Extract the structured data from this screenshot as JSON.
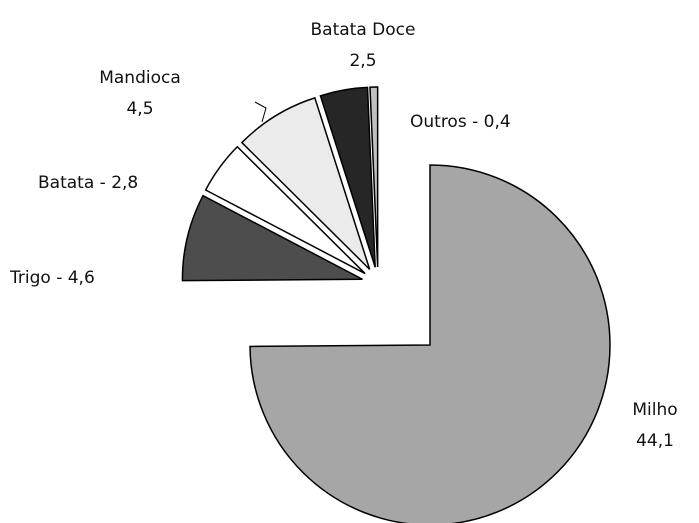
{
  "chart_data": {
    "type": "pie",
    "categories": [
      "Milho",
      "Trigo",
      "Batata",
      "Mandioca",
      "Batata Doce",
      "Outros"
    ],
    "values": [
      44.1,
      4.6,
      2.8,
      4.5,
      2.5,
      0.4
    ],
    "labels": [
      [
        "Milho",
        "44,1"
      ],
      [
        "Trigo - 4,6"
      ],
      [
        "Batata - 2,8"
      ],
      [
        "Mandioca",
        "4,5"
      ],
      [
        "Batata Doce",
        "2,5"
      ],
      [
        "Outros - 0,4"
      ]
    ],
    "colors": [
      "#a6a6a6",
      "#4d4d4d",
      "#ffffff",
      "#ebebeb",
      "#262626",
      "#bfbfbf"
    ]
  }
}
